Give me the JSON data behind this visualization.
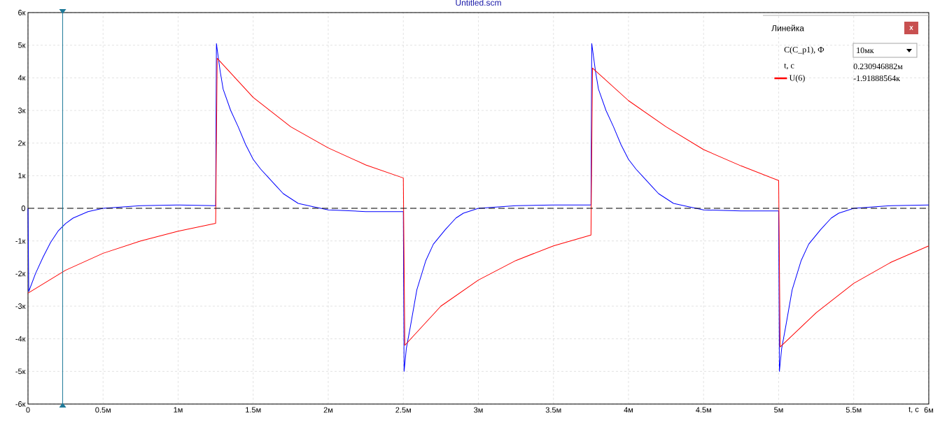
{
  "chart_data": {
    "type": "line",
    "title": "Untitled.scm",
    "xlabel": "t, с",
    "series": [
      {
        "color": "#0000ff",
        "x": [
          0,
          0.005,
          0.05,
          0.1,
          0.15,
          0.2,
          0.25,
          0.3,
          0.4,
          0.5,
          0.75,
          1.0,
          1.25,
          1.255,
          1.28,
          1.3,
          1.35,
          1.4,
          1.45,
          1.5,
          1.55,
          1.6,
          1.65,
          1.7,
          1.75,
          1.8,
          1.9,
          2.0,
          2.25,
          2.5,
          2.505,
          2.52,
          2.546,
          2.59,
          2.65,
          2.7,
          2.78,
          2.85,
          2.9,
          3.0,
          3.25,
          3.5,
          3.75,
          3.755,
          3.78,
          3.8,
          3.85,
          3.9,
          3.95,
          4.0,
          4.05,
          4.1,
          4.15,
          4.2,
          4.25,
          4.3,
          4.4,
          4.5,
          4.75,
          5.0,
          5.005,
          5.02,
          5.046,
          5.09,
          5.15,
          5.2,
          5.28,
          5.35,
          5.4,
          5.5,
          5.75,
          6.0
        ],
        "values": [
          0,
          -2.55,
          -2.0,
          -1.5,
          -1.05,
          -0.7,
          -0.47,
          -0.3,
          -0.1,
          0,
          0.08,
          0.1,
          0.08,
          5.05,
          4.2,
          3.65,
          3.0,
          2.5,
          1.95,
          1.5,
          1.2,
          0.95,
          0.7,
          0.45,
          0.3,
          0.15,
          0.05,
          -0.05,
          -0.1,
          -0.1,
          -5.0,
          -4.3,
          -3.65,
          -2.5,
          -1.6,
          -1.1,
          -0.65,
          -0.3,
          -0.15,
          0,
          0.08,
          0.1,
          0.1,
          5.05,
          4.2,
          3.65,
          3.0,
          2.5,
          1.95,
          1.5,
          1.2,
          0.95,
          0.7,
          0.45,
          0.3,
          0.15,
          0.05,
          -0.05,
          -0.08,
          -0.08,
          -5.0,
          -4.3,
          -3.65,
          -2.5,
          -1.6,
          -1.1,
          -0.65,
          -0.3,
          -0.15,
          0,
          0.08,
          0.1
        ]
      },
      {
        "name": "U(6)",
        "color": "#ff0000",
        "x": [
          0,
          0.25,
          0.5,
          0.75,
          1.0,
          1.25,
          1.26,
          1.5,
          1.75,
          2.0,
          2.25,
          2.5,
          2.51,
          2.75,
          3.0,
          3.25,
          3.5,
          3.75,
          3.76,
          4.0,
          4.25,
          4.5,
          4.75,
          5.0,
          5.01,
          5.25,
          5.5,
          5.75,
          6.0
        ],
        "values": [
          -2.6,
          -1.9,
          -1.38,
          -1.0,
          -0.7,
          -0.46,
          4.6,
          3.4,
          2.5,
          1.85,
          1.33,
          0.93,
          -4.2,
          -3.0,
          -2.2,
          -1.6,
          -1.15,
          -0.82,
          4.3,
          3.3,
          2.5,
          1.8,
          1.3,
          0.85,
          -4.25,
          -3.2,
          -2.3,
          -1.65,
          -1.15
        ]
      }
    ],
    "xlim": [
      0,
      6
    ],
    "xticks": [
      0,
      {
        "value": 0.5,
        "label": "0.5м"
      },
      {
        "value": 1,
        "label": "1м"
      },
      {
        "value": 1.5,
        "label": "1.5м"
      },
      {
        "value": 2,
        "label": "2м"
      },
      {
        "value": 2.5,
        "label": "2.5м"
      },
      {
        "value": 3,
        "label": "3м"
      },
      {
        "value": 3.5,
        "label": "3.5м"
      },
      {
        "value": 4,
        "label": "4м"
      },
      {
        "value": 4.5,
        "label": "4.5м"
      },
      {
        "value": 5,
        "label": "5м"
      },
      {
        "value": 5.5,
        "label": "5.5м"
      },
      {
        "value": 6,
        "label": "6м"
      }
    ],
    "ylim": [
      -6,
      6
    ],
    "yticks": [
      {
        "value": -6,
        "label": "-6к"
      },
      {
        "value": -5,
        "label": "-5к"
      },
      {
        "value": -4,
        "label": "-4к"
      },
      {
        "value": -3,
        "label": "-3к"
      },
      {
        "value": -2,
        "label": "-2к"
      },
      {
        "value": -1,
        "label": "-1к"
      },
      0,
      {
        "value": 1,
        "label": "1к"
      },
      {
        "value": 2,
        "label": "2к"
      },
      {
        "value": 3,
        "label": "3к"
      },
      {
        "value": 4,
        "label": "4к"
      },
      {
        "value": 5,
        "label": "5к"
      },
      {
        "value": 6,
        "label": "6к"
      }
    ],
    "ref_lines": [
      {
        "axis": "y",
        "value": 0,
        "color": "#000000",
        "line_style": "dashed"
      },
      {
        "axis": "x",
        "value": 0.230946882,
        "color": "#1f7a99",
        "line_style": "solid"
      }
    ],
    "grid": true,
    "legend": "top right",
    "marker": "none",
    "line_style": "solid",
    "annotations": [
      "Линейка",
      "x",
      "C(C_p1), Ф",
      "10мк",
      "t, с",
      "0.230946882м",
      "-1.91888564к"
    ]
  }
}
